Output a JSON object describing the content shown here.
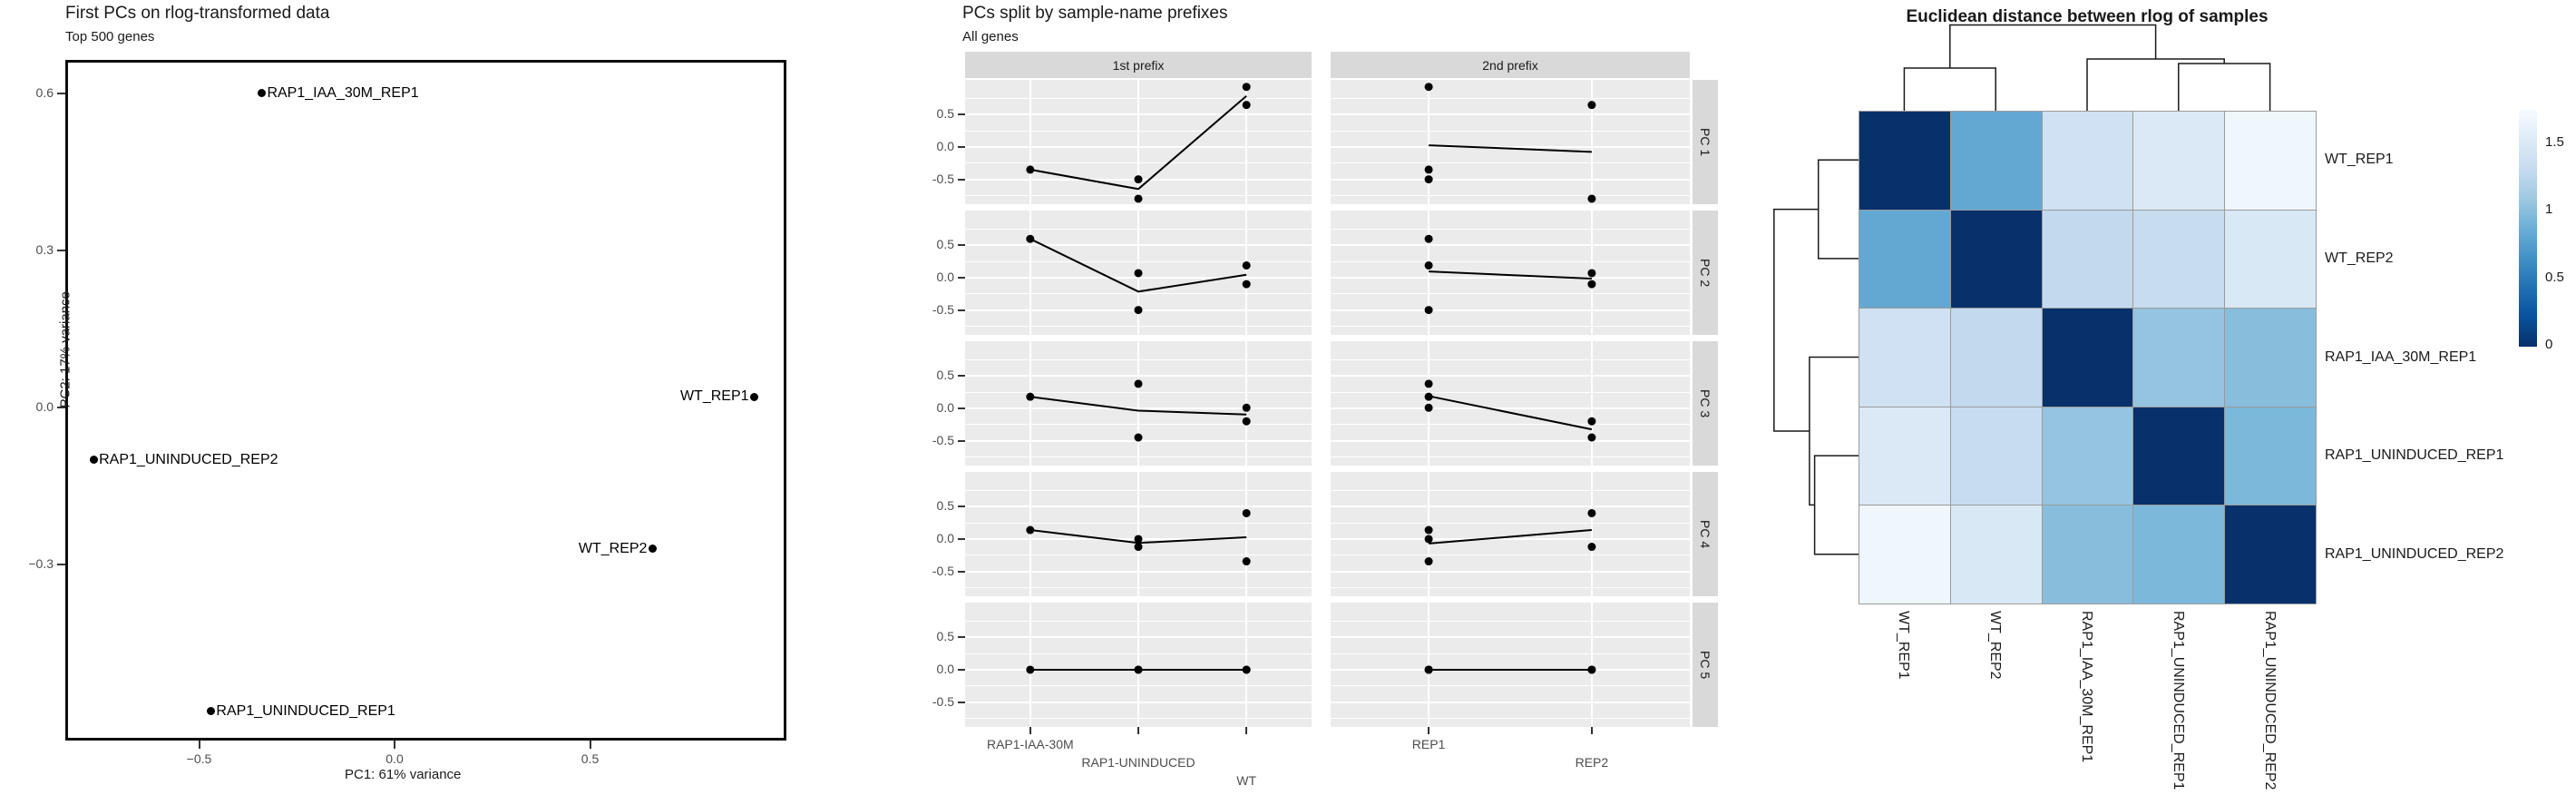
{
  "chart_data": [
    {
      "type": "scatter",
      "title": "First PCs on rlog-transformed data",
      "subtitle": "Top 500 genes",
      "xlabel": "PC1: 61% variance",
      "ylabel": "PC2: 17% variance",
      "x_ticks": [
        -0.5,
        0.0,
        0.5
      ],
      "x_tick_labels": [
        "−0.5",
        "0.0",
        "0.5"
      ],
      "y_ticks": [
        0.6,
        0.3,
        0.0,
        -0.3
      ],
      "y_tick_labels": [
        "0.6",
        "0.3",
        "0.0",
        "−0.3"
      ],
      "xlim": [
        -0.85,
        1.0
      ],
      "ylim": [
        -0.64,
        0.66
      ],
      "grid": false,
      "points": [
        {
          "label": "RAP1_IAA_30M_REP1",
          "x": -0.34,
          "y": 0.6,
          "label_side": "right"
        },
        {
          "label": "WT_REP1",
          "x": 0.92,
          "y": 0.02,
          "label_side": "left"
        },
        {
          "label": "RAP1_UNINDUCED_REP2",
          "x": -0.77,
          "y": -0.1,
          "label_side": "right"
        },
        {
          "label": "WT_REP2",
          "x": 0.66,
          "y": -0.27,
          "label_side": "left"
        },
        {
          "label": "RAP1_UNINDUCED_REP1",
          "x": -0.47,
          "y": -0.58,
          "label_side": "right"
        }
      ]
    },
    {
      "type": "line",
      "title": "PCs split by sample-name prefixes",
      "subtitle": "All genes",
      "col_facets": [
        "1st prefix",
        "2nd prefix"
      ],
      "row_facets": [
        "PC 1",
        "PC 2",
        "PC 3",
        "PC 4",
        "PC 5"
      ],
      "y_ticks": [
        0.5,
        0.0,
        -0.5
      ],
      "y_tick_labels": [
        "0.5",
        "0.0",
        "-0.5"
      ],
      "x_categories_left": [
        "RAP1-IAA-30M",
        "RAP1-UNINDUCED",
        "WT"
      ],
      "x_categories_right": [
        "REP1",
        "REP2"
      ],
      "samples": [
        "RAP1_IAA_30M_REP1",
        "RAP1_UNINDUCED_REP1",
        "RAP1_UNINDUCED_REP2",
        "WT_REP1",
        "WT_REP2"
      ],
      "series": [
        {
          "name": "PC 1",
          "values": [
            -0.35,
            -0.5,
            -0.8,
            0.93,
            0.65
          ]
        },
        {
          "name": "PC 2",
          "values": [
            0.6,
            -0.5,
            0.07,
            0.19,
            -0.1
          ]
        },
        {
          "name": "PC 3",
          "values": [
            0.18,
            0.38,
            -0.45,
            0.01,
            -0.2
          ]
        },
        {
          "name": "PC 4",
          "values": [
            0.14,
            0.0,
            -0.12,
            -0.345,
            0.4
          ]
        },
        {
          "name": "PC 5",
          "values": [
            0.0,
            0.0,
            0.0,
            0.0,
            0.0
          ]
        }
      ]
    },
    {
      "type": "heatmap",
      "title": "Euclidean distance between rlog of samples",
      "row_labels": [
        "WT_REP1",
        "WT_REP2",
        "RAP1_IAA_30M_REP1",
        "RAP1_UNINDUCED_REP1",
        "RAP1_UNINDUCED_REP2"
      ],
      "col_labels": [
        "WT_REP1",
        "WT_REP2",
        "RAP1_IAA_30M_REP1",
        "RAP1_UNINDUCED_REP1",
        "RAP1_UNINDUCED_REP2"
      ],
      "matrix": [
        [
          0.0,
          0.83,
          1.39,
          1.5,
          1.68
        ],
        [
          0.83,
          0.0,
          1.29,
          1.32,
          1.49
        ],
        [
          1.39,
          1.29,
          0.0,
          1.05,
          1.0
        ],
        [
          1.5,
          1.32,
          1.05,
          0.0,
          0.95
        ],
        [
          1.68,
          1.49,
          1.0,
          0.95,
          0.0
        ]
      ],
      "legend_tick_values": [
        1.5,
        1.0,
        0.5,
        0.0
      ],
      "legend_tick_labels": [
        "1.5",
        "1",
        "0.5",
        "0"
      ],
      "legend_max": 1.75,
      "legend_position": "right",
      "dendrograms": [
        "top",
        "left"
      ],
      "cluster_pairs": [
        [
          "WT_REP1",
          "WT_REP2"
        ],
        [
          "RAP1_UNINDUCED_REP1",
          "RAP1_UNINDUCED_REP2"
        ]
      ]
    }
  ],
  "styles": {
    "strip_bg": "#d9d9d9",
    "panel_bg": "#ebebeb",
    "heat_dark": "#08306b",
    "heat_light": "#f7fbff",
    "heat_ramp": [
      "#08306b",
      "#08519c",
      "#2171b5",
      "#4292c6",
      "#6baed6",
      "#9ecae1",
      "#c6dbef",
      "#deebf7",
      "#f7fbff"
    ],
    "cell_border": "#9b9b9b",
    "tick_color": "#4d4d4d",
    "dendro_color": "#1a1a1a"
  }
}
